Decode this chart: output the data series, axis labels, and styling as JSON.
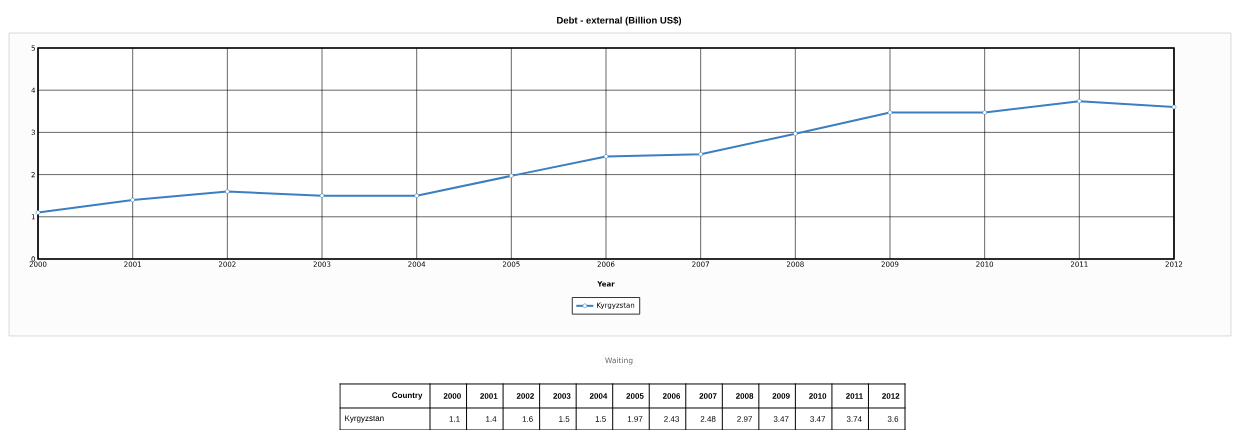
{
  "chart_data": [
    {
      "type": "line",
      "title": "Debt - external (Billion US$)",
      "xlabel": "Year",
      "x": [
        2000,
        2001,
        2002,
        2003,
        2004,
        2005,
        2006,
        2007,
        2008,
        2009,
        2010,
        2011,
        2012
      ],
      "series": [
        {
          "name": "Kyrgyzstan",
          "color": "#3b7fc1",
          "values": [
            1.1,
            1.4,
            1.6,
            1.5,
            1.5,
            1.97,
            2.43,
            2.48,
            2.97,
            3.47,
            3.47,
            3.74,
            3.6
          ]
        }
      ],
      "xlim": [
        2000,
        2012
      ],
      "xticks": [
        2000,
        2001,
        2002,
        2003,
        2004,
        2005,
        2006,
        2007,
        2008,
        2009,
        2010,
        2011,
        2012
      ],
      "ylim": [
        0,
        5
      ],
      "yticks": [
        0,
        1,
        2,
        3,
        4,
        5
      ],
      "grid": true,
      "legend": "bottom",
      "marker": "circle",
      "line_style": "solid",
      "annotations": [
        "Waiting"
      ]
    },
    {
      "type": "heatmap",
      "categories": [
        "2000",
        "2001",
        "2002",
        "2003",
        "2004",
        "2005",
        "2006",
        "2007",
        "2008",
        "2009",
        "2010",
        "2011",
        "2012"
      ],
      "y_categories": [
        "Kyrgyzstan"
      ],
      "cells": [
        [
          1.1,
          1.4,
          1.6,
          1.5,
          1.5,
          1.97,
          2.43,
          2.48,
          2.97,
          3.47,
          3.47,
          3.74,
          3.6
        ]
      ],
      "data_labels": true,
      "annotations": [
        "Country"
      ]
    }
  ]
}
